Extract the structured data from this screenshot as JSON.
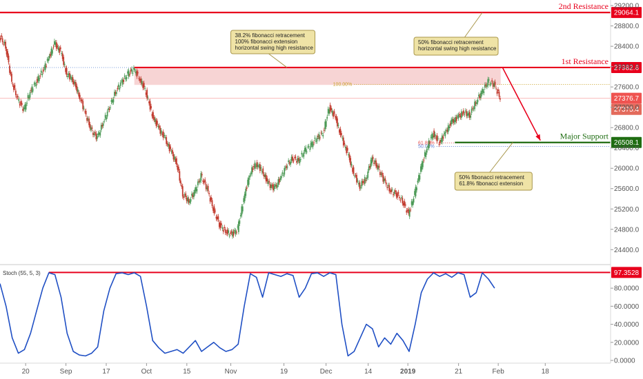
{
  "chart_data": {
    "type": "candlestick",
    "price_axis": {
      "ylim": [
        24160,
        29310
      ],
      "ticks": [
        24400,
        24800,
        25200,
        25600,
        26000,
        26400,
        26800,
        27200,
        27600,
        28000,
        28400,
        28800,
        29200
      ],
      "tick_labels": [
        "24400.0",
        "24800.0",
        "25200.0",
        "25600.0",
        "26000.0",
        "26400.0",
        "26800.0",
        "27200.0",
        "27600.0",
        "28000.0",
        "28400.0",
        "28800.0",
        "29200.0"
      ]
    },
    "x_axis": {
      "tick_labels": [
        "20",
        "Sep",
        "17",
        "Oct",
        "15",
        "Nov",
        "19",
        "Dec",
        "14",
        "2019",
        "21",
        "Feb",
        "18"
      ],
      "tick_fracs": [
        0.042,
        0.108,
        0.174,
        0.24,
        0.306,
        0.378,
        0.465,
        0.534,
        0.603,
        0.668,
        0.751,
        0.816,
        0.893
      ]
    },
    "price_series": [
      [
        0.0,
        28600
      ],
      [
        0.01,
        28400
      ],
      [
        0.02,
        27700
      ],
      [
        0.03,
        27350
      ],
      [
        0.04,
        27150
      ],
      [
        0.05,
        27500
      ],
      [
        0.06,
        27700
      ],
      [
        0.07,
        27900
      ],
      [
        0.08,
        28150
      ],
      [
        0.09,
        28450
      ],
      [
        0.1,
        28300
      ],
      [
        0.11,
        27850
      ],
      [
        0.12,
        27750
      ],
      [
        0.13,
        27450
      ],
      [
        0.14,
        27100
      ],
      [
        0.15,
        26750
      ],
      [
        0.16,
        26600
      ],
      [
        0.17,
        26900
      ],
      [
        0.18,
        27200
      ],
      [
        0.19,
        27500
      ],
      [
        0.2,
        27700
      ],
      [
        0.21,
        27850
      ],
      [
        0.22,
        27950
      ],
      [
        0.23,
        27750
      ],
      [
        0.24,
        27500
      ],
      [
        0.25,
        27050
      ],
      [
        0.26,
        26800
      ],
      [
        0.27,
        26600
      ],
      [
        0.28,
        26350
      ],
      [
        0.29,
        26100
      ],
      [
        0.3,
        25500
      ],
      [
        0.31,
        25350
      ],
      [
        0.32,
        25550
      ],
      [
        0.33,
        25850
      ],
      [
        0.34,
        25600
      ],
      [
        0.35,
        25200
      ],
      [
        0.36,
        24900
      ],
      [
        0.37,
        24750
      ],
      [
        0.38,
        24700
      ],
      [
        0.39,
        24800
      ],
      [
        0.4,
        25400
      ],
      [
        0.41,
        25900
      ],
      [
        0.42,
        26100
      ],
      [
        0.43,
        25950
      ],
      [
        0.44,
        25700
      ],
      [
        0.45,
        25600
      ],
      [
        0.46,
        25800
      ],
      [
        0.47,
        26050
      ],
      [
        0.48,
        26200
      ],
      [
        0.49,
        26150
      ],
      [
        0.5,
        26350
      ],
      [
        0.51,
        26450
      ],
      [
        0.52,
        26600
      ],
      [
        0.53,
        26700
      ],
      [
        0.54,
        27200
      ],
      [
        0.55,
        27000
      ],
      [
        0.56,
        26600
      ],
      [
        0.57,
        26300
      ],
      [
        0.58,
        25900
      ],
      [
        0.59,
        25650
      ],
      [
        0.6,
        25800
      ],
      [
        0.61,
        26200
      ],
      [
        0.62,
        26000
      ],
      [
        0.63,
        25750
      ],
      [
        0.64,
        25550
      ],
      [
        0.65,
        25500
      ],
      [
        0.66,
        25350
      ],
      [
        0.67,
        25100
      ],
      [
        0.68,
        25500
      ],
      [
        0.69,
        26000
      ],
      [
        0.7,
        26400
      ],
      [
        0.71,
        26700
      ],
      [
        0.72,
        26500
      ],
      [
        0.73,
        26700
      ],
      [
        0.74,
        26900
      ],
      [
        0.75,
        27000
      ],
      [
        0.76,
        27100
      ],
      [
        0.77,
        27050
      ],
      [
        0.78,
        27300
      ],
      [
        0.79,
        27500
      ],
      [
        0.8,
        27700
      ],
      [
        0.81,
        27650
      ],
      [
        0.82,
        27380
      ]
    ],
    "hlines": [
      {
        "name": "2nd Resistance",
        "price": 29064.1,
        "badge": "29064.1",
        "color": "#e8001c",
        "style": "solid"
      },
      {
        "name": "1st Resistance",
        "price": 27982.6,
        "badge": "27982.6",
        "color": "#e8001c",
        "style": "solid"
      },
      {
        "name": "Major Support",
        "price": 26508.1,
        "badge": "26508.1",
        "color": "#1f6d12",
        "style": "solid"
      },
      {
        "name": "",
        "price": 27376.7,
        "badge": "27376.7",
        "color": "#ef5350",
        "style": "line"
      },
      {
        "name": "",
        "price": 27375.4,
        "badge": "27375.4",
        "color": "#e36a5b",
        "style": "none"
      }
    ],
    "fib_levels": [
      {
        "label": "100.00%",
        "price": 27650,
        "color": "#c9a227"
      },
      {
        "label": "61.80%",
        "price": 26500,
        "color": "#e8504e"
      },
      {
        "label": "50.00%",
        "price": 26430,
        "color": "#5b7fd6"
      }
    ],
    "resistance_zone": {
      "low": 27640,
      "high": 27982.6,
      "color": "#f4c6c6"
    },
    "forecast_arrow": {
      "from_price": 27982.6,
      "to_price": 26508.1,
      "color": "#e8001c"
    },
    "annotations": [
      {
        "lines": [
          "38.2% fibonacci retracement",
          "100% fibonacci extension",
          "horizontal swing high resistance"
        ]
      },
      {
        "lines": [
          "50% fibonacci retracement",
          "horizontal swing high resistance"
        ]
      },
      {
        "lines": [
          "50% fibonacci retracement",
          "61.8% fibonacci extension"
        ]
      }
    ],
    "oscillator": {
      "title": "Stoch (55, 5, 3)",
      "ylim": [
        -3,
        103
      ],
      "ticks": [
        0,
        20,
        40,
        60,
        80
      ],
      "tick_labels": [
        "0.0000",
        "20.0000",
        "40.0000",
        "60.0000",
        "80.0000"
      ],
      "current_badge": "97.3528",
      "level_line": 97.3528,
      "series": [
        [
          0.0,
          85
        ],
        [
          0.01,
          60
        ],
        [
          0.02,
          25
        ],
        [
          0.03,
          8
        ],
        [
          0.04,
          12
        ],
        [
          0.05,
          30
        ],
        [
          0.06,
          55
        ],
        [
          0.07,
          80
        ],
        [
          0.08,
          97
        ],
        [
          0.09,
          95
        ],
        [
          0.1,
          70
        ],
        [
          0.11,
          30
        ],
        [
          0.12,
          10
        ],
        [
          0.13,
          6
        ],
        [
          0.14,
          5
        ],
        [
          0.15,
          8
        ],
        [
          0.16,
          15
        ],
        [
          0.17,
          55
        ],
        [
          0.18,
          80
        ],
        [
          0.19,
          96
        ],
        [
          0.2,
          97
        ],
        [
          0.21,
          95
        ],
        [
          0.22,
          97
        ],
        [
          0.23,
          93
        ],
        [
          0.24,
          60
        ],
        [
          0.25,
          22
        ],
        [
          0.26,
          14
        ],
        [
          0.27,
          8
        ],
        [
          0.28,
          10
        ],
        [
          0.29,
          12
        ],
        [
          0.3,
          8
        ],
        [
          0.31,
          15
        ],
        [
          0.32,
          22
        ],
        [
          0.33,
          10
        ],
        [
          0.34,
          15
        ],
        [
          0.35,
          20
        ],
        [
          0.36,
          14
        ],
        [
          0.37,
          10
        ],
        [
          0.38,
          12
        ],
        [
          0.39,
          18
        ],
        [
          0.4,
          60
        ],
        [
          0.41,
          96
        ],
        [
          0.42,
          92
        ],
        [
          0.43,
          70
        ],
        [
          0.44,
          97
        ],
        [
          0.45,
          95
        ],
        [
          0.46,
          93
        ],
        [
          0.47,
          96
        ],
        [
          0.48,
          94
        ],
        [
          0.49,
          70
        ],
        [
          0.5,
          80
        ],
        [
          0.51,
          96
        ],
        [
          0.52,
          97
        ],
        [
          0.53,
          93
        ],
        [
          0.54,
          97
        ],
        [
          0.55,
          95
        ],
        [
          0.56,
          40
        ],
        [
          0.57,
          5
        ],
        [
          0.58,
          10
        ],
        [
          0.59,
          25
        ],
        [
          0.6,
          40
        ],
        [
          0.61,
          35
        ],
        [
          0.62,
          15
        ],
        [
          0.63,
          25
        ],
        [
          0.64,
          18
        ],
        [
          0.65,
          30
        ],
        [
          0.66,
          22
        ],
        [
          0.67,
          10
        ],
        [
          0.68,
          40
        ],
        [
          0.69,
          75
        ],
        [
          0.7,
          90
        ],
        [
          0.71,
          97
        ],
        [
          0.72,
          93
        ],
        [
          0.73,
          96
        ],
        [
          0.74,
          92
        ],
        [
          0.75,
          97
        ],
        [
          0.76,
          95
        ],
        [
          0.77,
          70
        ],
        [
          0.78,
          75
        ],
        [
          0.79,
          97
        ],
        [
          0.8,
          90
        ],
        [
          0.81,
          80
        ]
      ]
    }
  }
}
